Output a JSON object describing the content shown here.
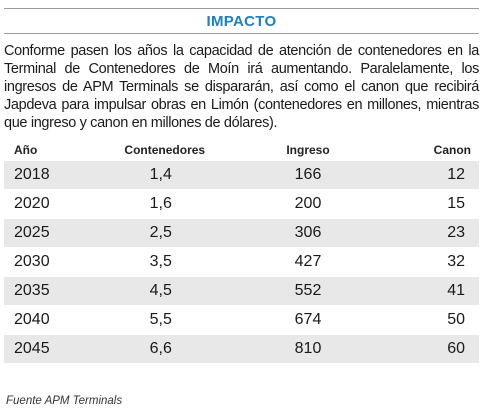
{
  "header": {
    "title": "IMPACTO"
  },
  "intro": {
    "text": "Conforme pasen los años la capacidad de atención de contenedores en la Terminal de Contenedores de Moín irá aumentando. Paralelamente, los ingresos de APM Terminals se dispararán, así como el canon que recibirá Japdeva para impulsar obras en Limón (contenedores en millones, mientras que ingreso y canon en millones de dólares)."
  },
  "table": {
    "headers": [
      "Año",
      "Contenedores",
      "Ingreso",
      "Canon"
    ],
    "rows": [
      [
        "2018",
        "1,4",
        "166",
        "12"
      ],
      [
        "2020",
        "1,6",
        "200",
        "15"
      ],
      [
        "2025",
        "2,5",
        "306",
        "23"
      ],
      [
        "2030",
        "3,5",
        "427",
        "32"
      ],
      [
        "2035",
        "4,5",
        "552",
        "41"
      ],
      [
        "2040",
        "5,5",
        "674",
        "50"
      ],
      [
        "2045",
        "6,6",
        "810",
        "60"
      ]
    ]
  },
  "source": "Fuente APM Terminals"
}
